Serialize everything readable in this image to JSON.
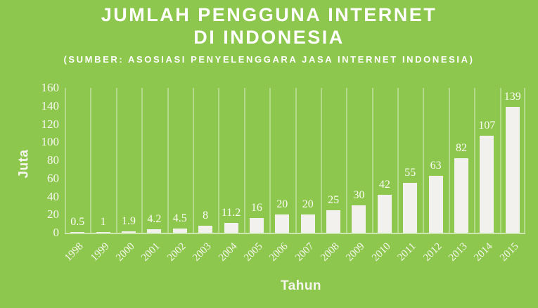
{
  "slide": {
    "title_line1": "JUMLAH PENGGUNA INTERNET",
    "title_line2": "DI INDONESIA",
    "subtitle": "(SUMBER: ASOSIASI PENYELENGGARA JASA INTERNET INDONESIA)"
  },
  "chart_data": {
    "type": "bar",
    "title": "JUMLAH PENGGUNA INTERNET DI INDONESIA",
    "subtitle": "(SUMBER: ASOSIASI PENYELENGGARA JASA INTERNET INDONESIA)",
    "categories": [
      "1998",
      "1999",
      "2000",
      "2001",
      "2002",
      "2003",
      "2004",
      "2005",
      "2006",
      "2007",
      "2008",
      "2009",
      "2010",
      "2011",
      "2012",
      "2013",
      "2014",
      "2015"
    ],
    "values": [
      0.5,
      1,
      1.9,
      4.2,
      4.5,
      8,
      11.2,
      16,
      20,
      20,
      25,
      30,
      42,
      55,
      63,
      82,
      107,
      139
    ],
    "data_labels": [
      "0.5",
      "1",
      "1.9",
      "4.2",
      "4.5",
      "8",
      "11.2",
      "16",
      "20",
      "20",
      "25",
      "30",
      "42",
      "55",
      "63",
      "82",
      "107",
      "139"
    ],
    "xlabel": "Tahun",
    "ylabel": "Juta",
    "ylim": [
      0,
      160
    ],
    "yticks": [
      0,
      20,
      40,
      60,
      80,
      100,
      120,
      140,
      160
    ],
    "grid": "vertical-category-boundaries",
    "legend": "none",
    "colors": {
      "background": "#8dc74d",
      "bar": "#f2f1ee",
      "gridline": "rgba(255,255,255,0.35)",
      "text": "#ffffff"
    }
  }
}
